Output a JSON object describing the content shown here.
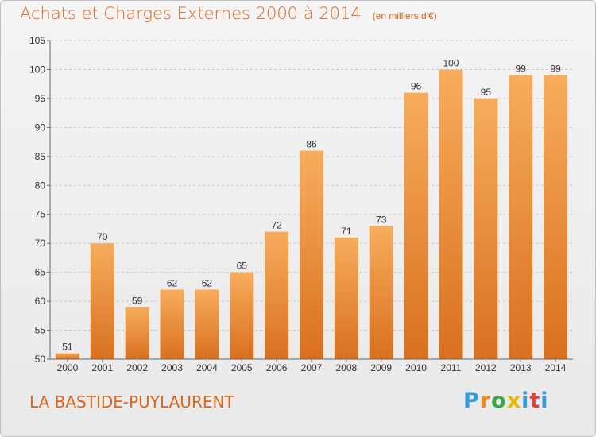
{
  "header": {
    "title": "Achats et Charges Externes 2000 à 2014",
    "subtitle": "(en milliers d'€)"
  },
  "footer": {
    "commune": "LA BASTIDE-PUYLAURENT",
    "brand": "Proxiti"
  },
  "colors": {
    "bar": "#f0923c",
    "bar_top": "#f7ad5c",
    "bar_bottom": "#d9701f",
    "text_accent": "#d9661f",
    "brand": [
      "#3a9ad9",
      "#f08a1c",
      "#3aa84a",
      "#e8b800",
      "#3a9ad9",
      "#e04040",
      "#3a9ad9"
    ]
  },
  "chart_data": {
    "type": "bar",
    "categories": [
      "2000",
      "2001",
      "2002",
      "2003",
      "2004",
      "2005",
      "2006",
      "2007",
      "2008",
      "2009",
      "2010",
      "2011",
      "2012",
      "2013",
      "2014"
    ],
    "values": [
      51,
      70,
      59,
      62,
      62,
      65,
      72,
      86,
      71,
      73,
      96,
      100,
      95,
      99,
      99
    ],
    "yticks": [
      50,
      55,
      60,
      65,
      70,
      75,
      80,
      85,
      90,
      95,
      100,
      105
    ],
    "ylim": [
      50,
      105
    ],
    "grid": "horizontal dashed",
    "data_labels": true
  }
}
